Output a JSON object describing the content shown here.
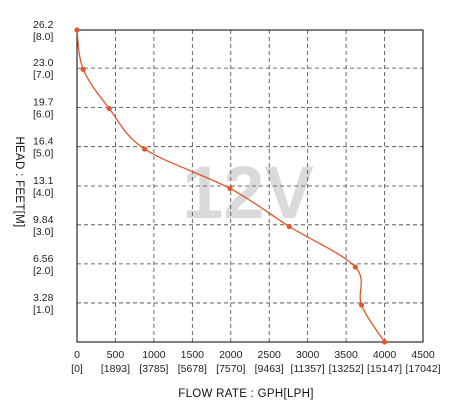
{
  "chart_data": {
    "type": "line",
    "title": "",
    "watermark": "12V",
    "xlabel": "FLOW RATE : GPH[LPH]",
    "ylabel": "HEAD : FEET[M]",
    "xlim": [
      0,
      4000
    ],
    "ylim": [
      0,
      26.2
    ],
    "grid": true,
    "x_ticks": [
      {
        "value": 0,
        "label": "0",
        "sub": "[0]"
      },
      {
        "value": 500,
        "label": "500",
        "sub": "[1893]"
      },
      {
        "value": 1000,
        "label": "1000",
        "sub": "[3785]"
      },
      {
        "value": 1500,
        "label": "1500",
        "sub": "[5678]"
      },
      {
        "value": 2000,
        "label": "2000",
        "sub": "[7570]"
      },
      {
        "value": 2500,
        "label": "2500",
        "sub": "[9463]"
      },
      {
        "value": 3000,
        "label": "3000",
        "sub": "[11357]"
      },
      {
        "value": 3500,
        "label": "3500",
        "sub": "[13252]"
      },
      {
        "value": 4000,
        "label": "4000",
        "sub": "[15147]"
      },
      {
        "value": 4500,
        "label": "4500",
        "sub": "[17042]"
      }
    ],
    "y_ticks": [
      {
        "value": 26.2,
        "label": "26.2",
        "sub": "[8.0]"
      },
      {
        "value": 23.0,
        "label": "23.0",
        "sub": "[7.0]"
      },
      {
        "value": 19.7,
        "label": "19.7",
        "sub": "[6.0]"
      },
      {
        "value": 16.4,
        "label": "16.4",
        "sub": "[5.0]"
      },
      {
        "value": 13.1,
        "label": "13.1",
        "sub": "[4.0]"
      },
      {
        "value": 9.84,
        "label": "9.84",
        "sub": "[3.0]"
      },
      {
        "value": 6.56,
        "label": "6.56",
        "sub": "[2.0]"
      },
      {
        "value": 3.28,
        "label": "3.28",
        "sub": "[1.0]"
      }
    ],
    "series": [
      {
        "color": "#e0572b",
        "x": [
          0,
          80,
          420,
          880,
          1990,
          2760,
          3620,
          3700,
          4000
        ],
        "y": [
          26.2,
          22.9,
          19.6,
          16.2,
          12.9,
          9.7,
          6.3,
          3.1,
          0
        ]
      }
    ]
  }
}
